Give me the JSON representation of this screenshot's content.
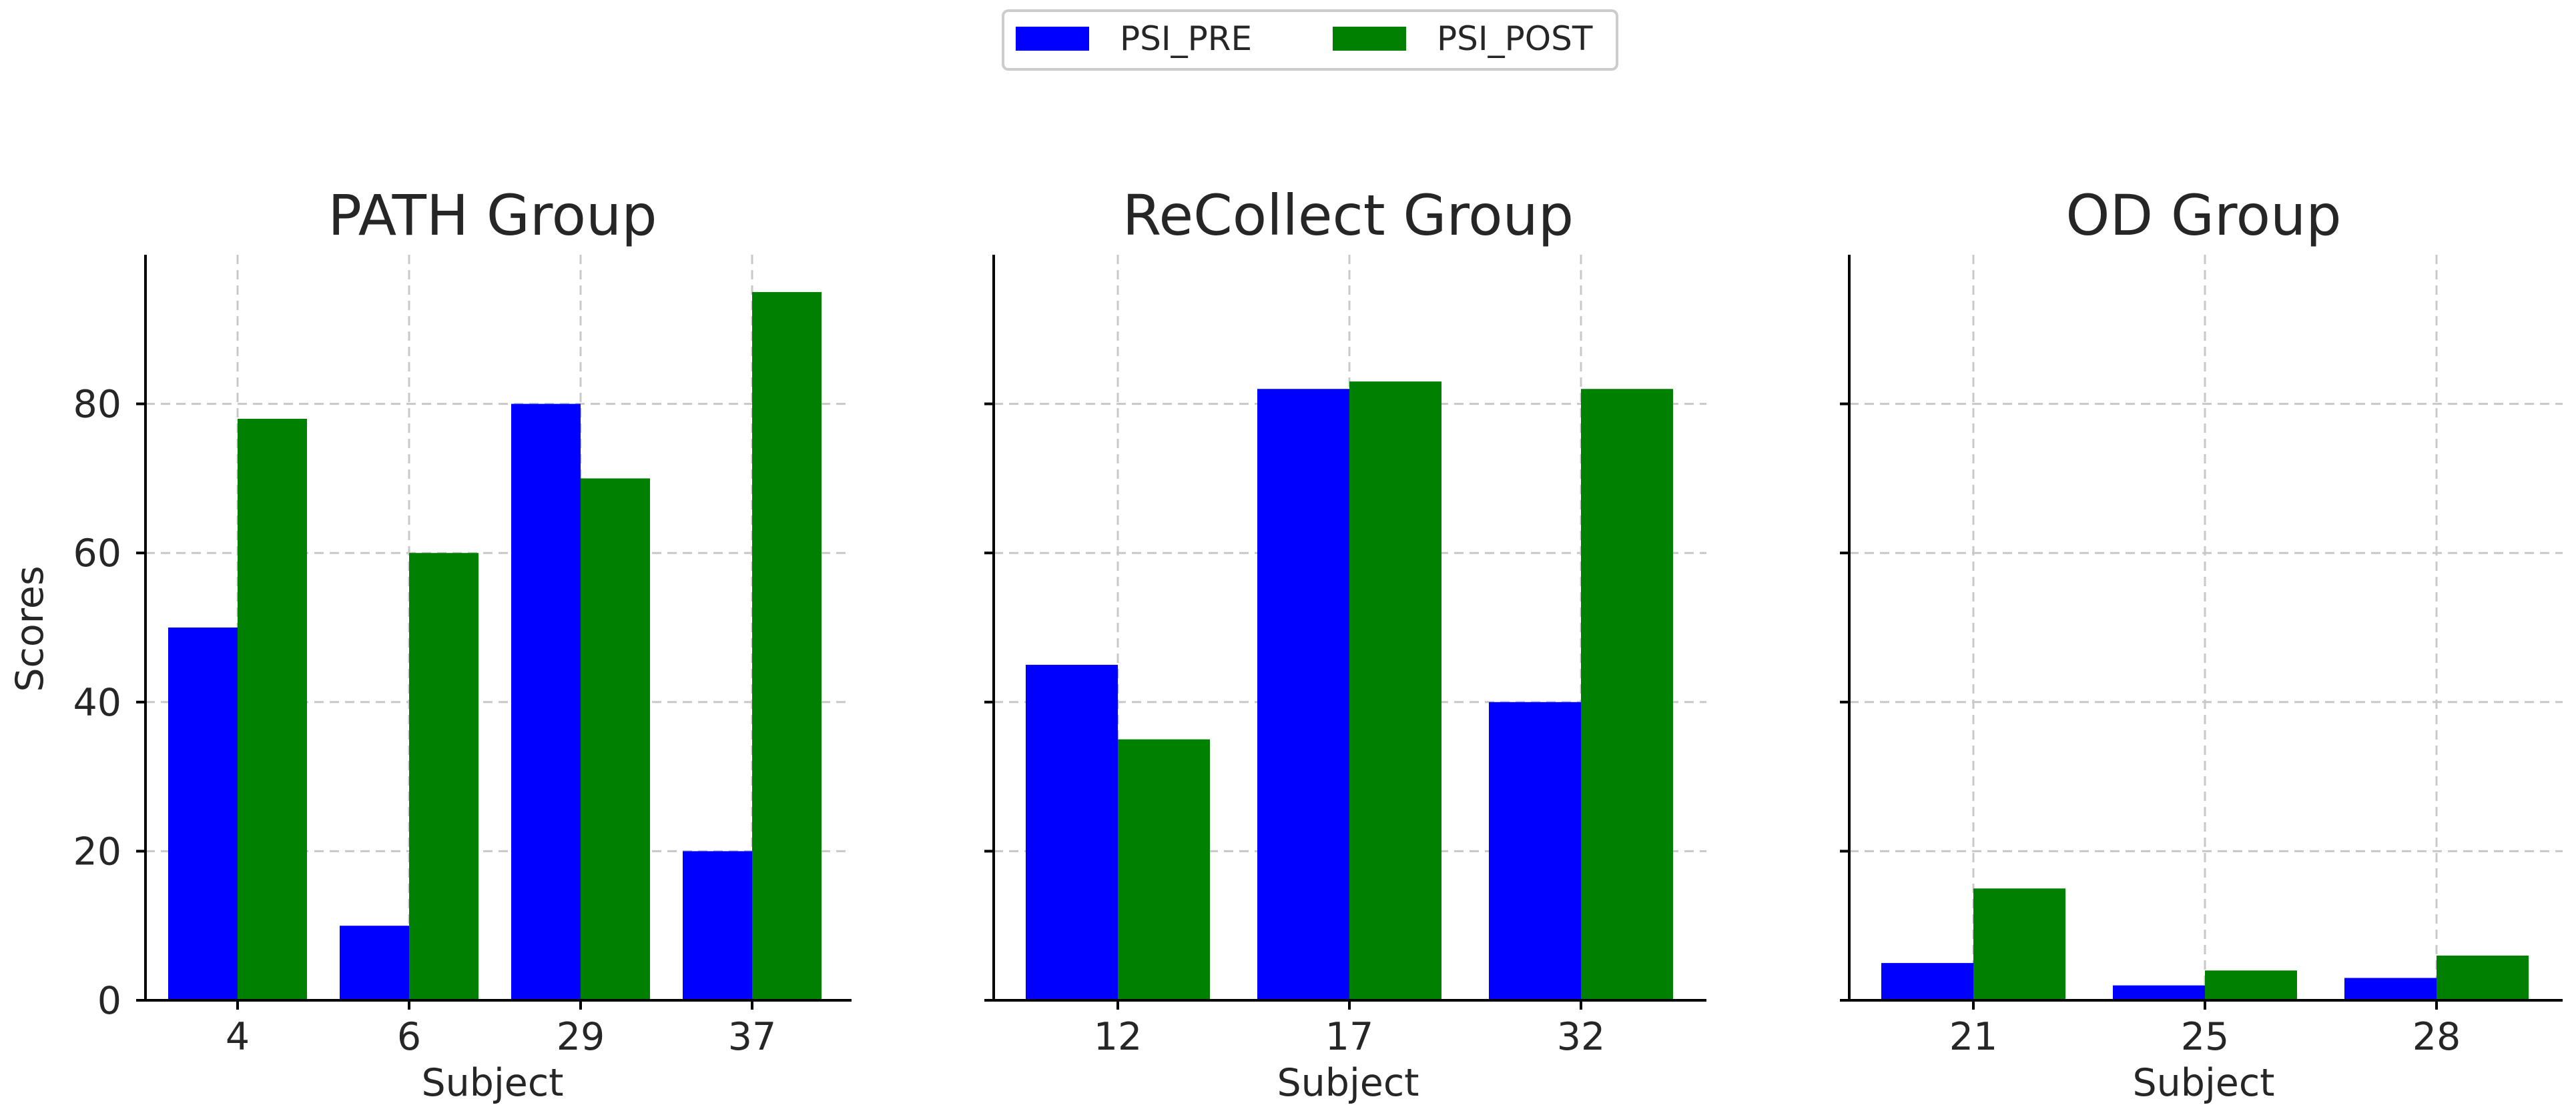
{
  "legend": {
    "entries": [
      {
        "label": "PSI_PRE",
        "color": "#0000ff"
      },
      {
        "label": "PSI_POST",
        "color": "#008000"
      }
    ]
  },
  "shared_ylabel": "Scores",
  "chart_data": [
    {
      "type": "bar",
      "title": "PATH Group",
      "xlabel": "Subject",
      "ylabel": "Scores",
      "categories": [
        "4",
        "6",
        "29",
        "37"
      ],
      "series": [
        {
          "name": "PSI_PRE",
          "color": "#0000ff",
          "values": [
            50,
            10,
            80,
            20
          ]
        },
        {
          "name": "PSI_POST",
          "color": "#008000",
          "values": [
            78,
            60,
            70,
            95
          ]
        }
      ],
      "ylim": [
        0,
        100
      ],
      "yticks": [
        0,
        20,
        40,
        60,
        80
      ],
      "grid": true
    },
    {
      "type": "bar",
      "title": "ReCollect Group",
      "xlabel": "Subject",
      "ylabel": "",
      "categories": [
        "12",
        "17",
        "32"
      ],
      "series": [
        {
          "name": "PSI_PRE",
          "color": "#0000ff",
          "values": [
            45,
            82,
            40
          ]
        },
        {
          "name": "PSI_POST",
          "color": "#008000",
          "values": [
            35,
            83,
            82
          ]
        }
      ],
      "ylim": [
        0,
        100
      ],
      "yticks": [
        0,
        20,
        40,
        60,
        80
      ],
      "grid": true
    },
    {
      "type": "bar",
      "title": "OD Group",
      "xlabel": "Subject",
      "ylabel": "",
      "categories": [
        "21",
        "25",
        "28"
      ],
      "series": [
        {
          "name": "PSI_PRE",
          "color": "#0000ff",
          "values": [
            5,
            2,
            3
          ]
        },
        {
          "name": "PSI_POST",
          "color": "#008000",
          "values": [
            15,
            4,
            6
          ]
        }
      ],
      "ylim": [
        0,
        100
      ],
      "yticks": [
        0,
        20,
        40,
        60,
        80
      ],
      "grid": true
    }
  ]
}
